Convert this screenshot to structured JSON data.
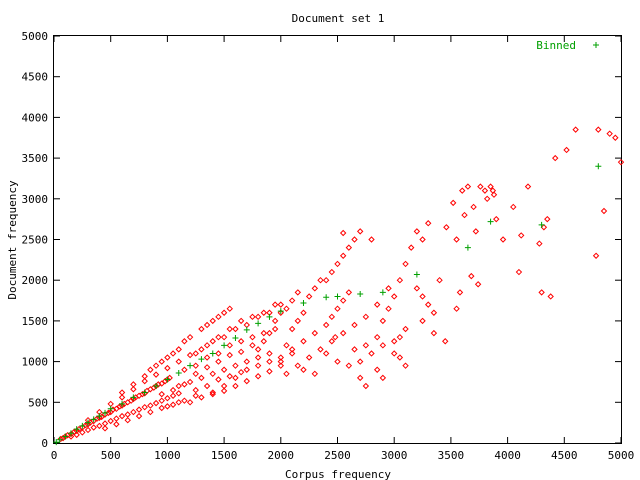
{
  "chart_data": {
    "type": "scatter",
    "title": "Document set 1",
    "xlabel": "Corpus frequency",
    "ylabel": "Document frequency",
    "xlim": [
      0,
      5000
    ],
    "ylim": [
      0,
      5000
    ],
    "xticks": [
      0,
      500,
      1000,
      1500,
      2000,
      2500,
      3000,
      3500,
      4000,
      4500,
      5000
    ],
    "yticks": [
      0,
      500,
      1000,
      1500,
      2000,
      2500,
      3000,
      3500,
      4000,
      4500,
      5000
    ],
    "grid": false,
    "legend_position": "top-right",
    "colors": {
      "points": "#ff0000",
      "binned": "#00a000"
    },
    "series": [
      {
        "marker": "diamond",
        "points": [
          [
            60,
            50
          ],
          [
            80,
            60
          ],
          [
            100,
            80
          ],
          [
            120,
            95
          ],
          [
            150,
            110
          ],
          [
            180,
            140
          ],
          [
            200,
            150
          ],
          [
            220,
            170
          ],
          [
            250,
            190
          ],
          [
            280,
            220
          ],
          [
            300,
            230
          ],
          [
            320,
            250
          ],
          [
            350,
            270
          ],
          [
            380,
            300
          ],
          [
            400,
            310
          ],
          [
            420,
            320
          ],
          [
            450,
            350
          ],
          [
            480,
            370
          ],
          [
            500,
            380
          ],
          [
            520,
            410
          ],
          [
            550,
            420
          ],
          [
            580,
            450
          ],
          [
            600,
            460
          ],
          [
            620,
            480
          ],
          [
            650,
            500
          ],
          [
            680,
            520
          ],
          [
            700,
            540
          ],
          [
            720,
            560
          ],
          [
            750,
            580
          ],
          [
            780,
            600
          ],
          [
            800,
            610
          ],
          [
            820,
            640
          ],
          [
            850,
            660
          ],
          [
            880,
            680
          ],
          [
            900,
            700
          ],
          [
            920,
            720
          ],
          [
            950,
            730
          ],
          [
            980,
            760
          ],
          [
            1000,
            780
          ],
          [
            1020,
            800
          ],
          [
            150,
            80
          ],
          [
            200,
            100
          ],
          [
            250,
            130
          ],
          [
            300,
            160
          ],
          [
            350,
            190
          ],
          [
            400,
            210
          ],
          [
            450,
            240
          ],
          [
            500,
            270
          ],
          [
            550,
            300
          ],
          [
            600,
            330
          ],
          [
            650,
            350
          ],
          [
            700,
            380
          ],
          [
            750,
            410
          ],
          [
            800,
            440
          ],
          [
            850,
            460
          ],
          [
            900,
            490
          ],
          [
            950,
            520
          ],
          [
            1000,
            550
          ],
          [
            1050,
            580
          ],
          [
            1100,
            610
          ],
          [
            300,
            280
          ],
          [
            400,
            380
          ],
          [
            500,
            480
          ],
          [
            600,
            560
          ],
          [
            700,
            660
          ],
          [
            800,
            760
          ],
          [
            900,
            840
          ],
          [
            1000,
            920
          ],
          [
            1100,
            1000
          ],
          [
            1200,
            1080
          ],
          [
            1300,
            1150
          ],
          [
            1400,
            1250
          ],
          [
            1500,
            1300
          ],
          [
            1600,
            1400
          ],
          [
            1700,
            1450
          ],
          [
            1800,
            1550
          ],
          [
            1900,
            1600
          ],
          [
            2000,
            1700
          ],
          [
            1100,
            700
          ],
          [
            1200,
            750
          ],
          [
            1300,
            800
          ],
          [
            1400,
            850
          ],
          [
            1500,
            900
          ],
          [
            1600,
            950
          ],
          [
            1700,
            1000
          ],
          [
            1800,
            1050
          ],
          [
            1900,
            1100
          ],
          [
            1150,
            900
          ],
          [
            1250,
            950
          ],
          [
            1350,
            1050
          ],
          [
            1450,
            1100
          ],
          [
            1550,
            1200
          ],
          [
            1650,
            1250
          ],
          [
            1750,
            1300
          ],
          [
            1850,
            1350
          ],
          [
            1950,
            1400
          ],
          [
            1250,
            1100
          ],
          [
            1350,
            1200
          ],
          [
            1450,
            1300
          ],
          [
            1550,
            1400
          ],
          [
            1650,
            1500
          ],
          [
            1750,
            1550
          ],
          [
            1850,
            1600
          ],
          [
            1950,
            1700
          ],
          [
            1200,
            500
          ],
          [
            1300,
            560
          ],
          [
            1400,
            600
          ],
          [
            1500,
            640
          ],
          [
            1600,
            700
          ],
          [
            1700,
            760
          ],
          [
            1800,
            820
          ],
          [
            1900,
            880
          ],
          [
            2000,
            950
          ],
          [
            1050,
            650
          ],
          [
            1150,
            720
          ],
          [
            1250,
            850
          ],
          [
            1350,
            930
          ],
          [
            1450,
            1000
          ],
          [
            1550,
            1080
          ],
          [
            1650,
            1120
          ],
          [
            1750,
            1200
          ],
          [
            950,
            600
          ],
          [
            1000,
            450
          ],
          [
            1100,
            500
          ],
          [
            1250,
            650
          ],
          [
            1350,
            700
          ],
          [
            1450,
            780
          ],
          [
            1550,
            820
          ],
          [
            1650,
            870
          ],
          [
            2000,
            1000
          ],
          [
            2050,
            1200
          ],
          [
            2100,
            1400
          ],
          [
            2150,
            1500
          ],
          [
            2200,
            1600
          ],
          [
            2250,
            1800
          ],
          [
            2300,
            1900
          ],
          [
            2350,
            2000
          ],
          [
            2100,
            1100
          ],
          [
            2200,
            1250
          ],
          [
            2300,
            1350
          ],
          [
            2400,
            1450
          ],
          [
            2450,
            1550
          ],
          [
            2500,
            1650
          ],
          [
            2550,
            1750
          ],
          [
            2600,
            1850
          ],
          [
            2050,
            850
          ],
          [
            2150,
            950
          ],
          [
            2250,
            1050
          ],
          [
            2350,
            1150
          ],
          [
            2450,
            1250
          ],
          [
            2550,
            1350
          ],
          [
            2650,
            1450
          ],
          [
            2750,
            1550
          ],
          [
            2400,
            2000
          ],
          [
            2450,
            2100
          ],
          [
            2500,
            2200
          ],
          [
            2550,
            2300
          ],
          [
            2600,
            2400
          ],
          [
            2650,
            2500
          ],
          [
            2700,
            2600
          ],
          [
            2800,
            2500
          ],
          [
            2850,
            1300
          ],
          [
            2900,
            1500
          ],
          [
            2950,
            1650
          ],
          [
            3000,
            1800
          ],
          [
            3050,
            2000
          ],
          [
            3100,
            2200
          ],
          [
            3150,
            2400
          ],
          [
            3200,
            2600
          ],
          [
            3000,
            1100
          ],
          [
            3050,
            1300
          ],
          [
            3100,
            1400
          ],
          [
            2750,
            1200
          ],
          [
            2700,
            1000
          ],
          [
            2800,
            1100
          ],
          [
            2850,
            1700
          ],
          [
            2950,
            1900
          ],
          [
            3250,
            2500
          ],
          [
            3300,
            2700
          ],
          [
            3200,
            1900
          ],
          [
            3250,
            1800
          ],
          [
            3300,
            1700
          ],
          [
            3350,
            1600
          ],
          [
            3400,
            2000
          ],
          [
            3100,
            950
          ],
          [
            2300,
            850
          ],
          [
            2200,
            900
          ],
          [
            2400,
            1100
          ],
          [
            2500,
            1000
          ],
          [
            2600,
            950
          ],
          [
            2650,
            1150
          ],
          [
            2900,
            1200
          ],
          [
            3000,
            1250
          ],
          [
            3520,
            2950
          ],
          [
            3550,
            2500
          ],
          [
            3580,
            1850
          ],
          [
            3620,
            2800
          ],
          [
            3680,
            2050
          ],
          [
            3720,
            2600
          ],
          [
            3760,
            3150
          ],
          [
            3800,
            3100
          ],
          [
            3820,
            3000
          ],
          [
            3850,
            3150
          ],
          [
            3870,
            3100
          ],
          [
            3900,
            2750
          ],
          [
            3600,
            3100
          ],
          [
            3650,
            3150
          ],
          [
            3700,
            2900
          ],
          [
            3550,
            1650
          ],
          [
            3740,
            1950
          ],
          [
            3880,
            3050
          ],
          [
            4050,
            2900
          ],
          [
            4100,
            2100
          ],
          [
            4120,
            2550
          ],
          [
            4180,
            3150
          ],
          [
            4300,
            1850
          ],
          [
            4320,
            2650
          ],
          [
            4350,
            2750
          ],
          [
            4380,
            1800
          ],
          [
            4420,
            3500
          ],
          [
            4520,
            3600
          ],
          [
            4600,
            3850
          ],
          [
            4780,
            2300
          ],
          [
            4800,
            3850
          ],
          [
            4850,
            2850
          ],
          [
            4900,
            3800
          ],
          [
            4950,
            3750
          ],
          [
            5000,
            3450
          ],
          [
            4280,
            2450
          ],
          [
            3960,
            2500
          ],
          [
            3460,
            2650
          ],
          [
            2550,
            2580
          ],
          [
            2480,
            1300
          ],
          [
            2700,
            800
          ],
          [
            2750,
            700
          ],
          [
            2850,
            900
          ],
          [
            2900,
            800
          ],
          [
            3050,
            1050
          ],
          [
            3250,
            1500
          ],
          [
            3350,
            1350
          ],
          [
            3450,
            1250
          ],
          [
            1800,
            1150
          ],
          [
            1850,
            1250
          ],
          [
            1900,
            1350
          ],
          [
            1950,
            1500
          ],
          [
            2000,
            1600
          ],
          [
            2050,
            1650
          ],
          [
            2100,
            1750
          ],
          [
            2150,
            1850
          ],
          [
            600,
            620
          ],
          [
            700,
            720
          ],
          [
            800,
            820
          ],
          [
            850,
            900
          ],
          [
            900,
            950
          ],
          [
            950,
            1000
          ],
          [
            1000,
            1050
          ],
          [
            1050,
            1100
          ],
          [
            1100,
            1150
          ],
          [
            1150,
            1250
          ],
          [
            1200,
            1300
          ],
          [
            1300,
            1400
          ],
          [
            1350,
            1450
          ],
          [
            1400,
            1500
          ],
          [
            1450,
            1550
          ],
          [
            1500,
            1600
          ],
          [
            1550,
            1650
          ],
          [
            450,
            180
          ],
          [
            550,
            230
          ],
          [
            650,
            280
          ],
          [
            750,
            330
          ],
          [
            850,
            380
          ],
          [
            950,
            430
          ],
          [
            1050,
            470
          ],
          [
            1150,
            520
          ],
          [
            1250,
            580
          ],
          [
            1400,
            620
          ],
          [
            1500,
            700
          ],
          [
            1600,
            800
          ],
          [
            1700,
            900
          ],
          [
            1800,
            950
          ],
          [
            1900,
            1000
          ],
          [
            2000,
            1050
          ],
          [
            2100,
            1150
          ]
        ]
      },
      {
        "name": "Binned",
        "marker": "plus",
        "points": [
          [
            20,
            10
          ],
          [
            50,
            40
          ],
          [
            100,
            80
          ],
          [
            150,
            120
          ],
          [
            200,
            170
          ],
          [
            250,
            210
          ],
          [
            300,
            250
          ],
          [
            350,
            290
          ],
          [
            400,
            330
          ],
          [
            450,
            370
          ],
          [
            500,
            420
          ],
          [
            600,
            480
          ],
          [
            700,
            560
          ],
          [
            800,
            620
          ],
          [
            900,
            700
          ],
          [
            1000,
            780
          ],
          [
            1100,
            860
          ],
          [
            1200,
            950
          ],
          [
            1300,
            1030
          ],
          [
            1400,
            1100
          ],
          [
            1500,
            1200
          ],
          [
            1600,
            1290
          ],
          [
            1700,
            1390
          ],
          [
            1800,
            1470
          ],
          [
            1900,
            1550
          ],
          [
            2000,
            1620
          ],
          [
            2200,
            1720
          ],
          [
            2400,
            1790
          ],
          [
            2500,
            1800
          ],
          [
            2700,
            1830
          ],
          [
            2900,
            1850
          ],
          [
            3200,
            2070
          ],
          [
            3650,
            2400
          ],
          [
            3850,
            2720
          ],
          [
            4300,
            2680
          ],
          [
            4800,
            3400
          ]
        ]
      }
    ]
  }
}
